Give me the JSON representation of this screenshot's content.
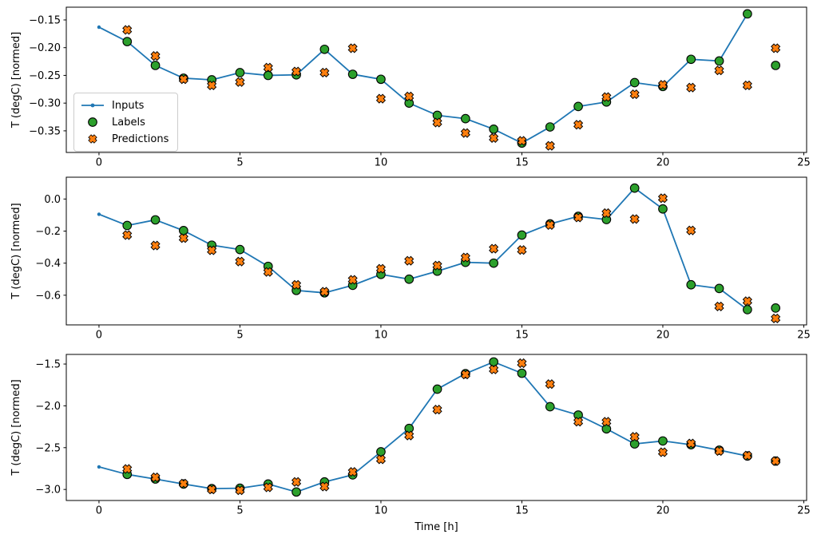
{
  "figure": {
    "background": "#ffffff"
  },
  "xlabel": "Time [h]",
  "legend": {
    "items": [
      {
        "label": "Inputs",
        "marker": "line-dot",
        "color": "#1f77b4"
      },
      {
        "label": "Labels",
        "marker": "circle",
        "color": "#2ca02c"
      },
      {
        "label": "Predictions",
        "marker": "x",
        "color": "#ff7f0e"
      }
    ]
  },
  "colors": {
    "inputs": "#1f77b4",
    "labels": "#2ca02c",
    "predictions": "#ff7f0e",
    "edge": "#000000"
  },
  "chart_data": [
    {
      "type": "line",
      "title": "",
      "ylabel": "T (degC) [normed]",
      "xlabel": "",
      "xlim": [
        -1.16,
        25.1
      ],
      "ylim": [
        -0.389,
        -0.127
      ],
      "grid": false,
      "xticks": [
        {
          "v": 0,
          "label": "0"
        },
        {
          "v": 5,
          "label": "5"
        },
        {
          "v": 10,
          "label": "10"
        },
        {
          "v": 15,
          "label": "15"
        },
        {
          "v": 20,
          "label": "20"
        },
        {
          "v": 25,
          "label": "25"
        }
      ],
      "yticks": [
        {
          "v": -0.15,
          "label": "−0.15"
        },
        {
          "v": -0.2,
          "label": "−0.20"
        },
        {
          "v": -0.25,
          "label": "−0.25"
        },
        {
          "v": -0.3,
          "label": "−0.30"
        },
        {
          "v": -0.35,
          "label": "−0.35"
        }
      ],
      "series": [
        {
          "name": "Inputs",
          "style": "line-dot",
          "color": "#1f77b4",
          "x": [
            0,
            1,
            2,
            3,
            4,
            5,
            6,
            7,
            8,
            9,
            10,
            11,
            12,
            13,
            14,
            15,
            16,
            17,
            18,
            19,
            20,
            21,
            22,
            23
          ],
          "y": [
            -0.163,
            -0.189,
            -0.232,
            -0.255,
            -0.258,
            -0.245,
            -0.25,
            -0.249,
            -0.203,
            -0.248,
            -0.257,
            -0.3,
            -0.322,
            -0.328,
            -0.347,
            -0.372,
            -0.343,
            -0.306,
            -0.298,
            -0.263,
            -0.27,
            -0.221,
            -0.224,
            -0.139
          ]
        },
        {
          "name": "Labels",
          "style": "circle",
          "color": "#2ca02c",
          "x": [
            1,
            2,
            3,
            4,
            5,
            6,
            7,
            8,
            9,
            10,
            11,
            12,
            13,
            14,
            15,
            16,
            17,
            18,
            19,
            20,
            21,
            22,
            23,
            24
          ],
          "y": [
            -0.189,
            -0.232,
            -0.255,
            -0.258,
            -0.245,
            -0.25,
            -0.249,
            -0.203,
            -0.248,
            -0.257,
            -0.3,
            -0.322,
            -0.328,
            -0.347,
            -0.372,
            -0.343,
            -0.306,
            -0.298,
            -0.263,
            -0.27,
            -0.221,
            -0.224,
            -0.139,
            -0.232
          ]
        },
        {
          "name": "Predictions",
          "style": "x",
          "color": "#ff7f0e",
          "x": [
            1,
            2,
            3,
            4,
            5,
            6,
            7,
            8,
            9,
            10,
            11,
            12,
            13,
            14,
            15,
            16,
            17,
            18,
            19,
            20,
            21,
            22,
            23,
            24
          ],
          "y": [
            -0.168,
            -0.215,
            -0.257,
            -0.268,
            -0.262,
            -0.236,
            -0.243,
            -0.245,
            -0.201,
            -0.292,
            -0.288,
            -0.335,
            -0.354,
            -0.363,
            -0.368,
            -0.377,
            -0.339,
            -0.289,
            -0.284,
            -0.267,
            -0.272,
            -0.241,
            -0.268,
            -0.201
          ]
        }
      ]
    },
    {
      "type": "line",
      "title": "",
      "ylabel": "T (degC) [normed]",
      "xlabel": "",
      "xlim": [
        -1.16,
        25.1
      ],
      "ylim": [
        -0.785,
        0.136
      ],
      "grid": false,
      "xticks": [
        {
          "v": 0,
          "label": "0"
        },
        {
          "v": 5,
          "label": "5"
        },
        {
          "v": 10,
          "label": "10"
        },
        {
          "v": 15,
          "label": "15"
        },
        {
          "v": 20,
          "label": "20"
        },
        {
          "v": 25,
          "label": "25"
        }
      ],
      "yticks": [
        {
          "v": 0.0,
          "label": "0.0"
        },
        {
          "v": -0.2,
          "label": "−0.2"
        },
        {
          "v": -0.4,
          "label": "−0.4"
        },
        {
          "v": -0.6,
          "label": "−0.6"
        }
      ],
      "series": [
        {
          "name": "Inputs",
          "style": "line-dot",
          "color": "#1f77b4",
          "x": [
            0,
            1,
            2,
            3,
            4,
            5,
            6,
            7,
            8,
            9,
            10,
            11,
            12,
            13,
            14,
            15,
            16,
            17,
            18,
            19,
            20,
            21,
            22,
            23
          ],
          "y": [
            -0.095,
            -0.165,
            -0.13,
            -0.197,
            -0.288,
            -0.315,
            -0.42,
            -0.57,
            -0.585,
            -0.538,
            -0.47,
            -0.5,
            -0.45,
            -0.395,
            -0.4,
            -0.225,
            -0.155,
            -0.108,
            -0.128,
            0.068,
            -0.062,
            -0.535,
            -0.558,
            -0.69
          ]
        },
        {
          "name": "Labels",
          "style": "circle",
          "color": "#2ca02c",
          "x": [
            1,
            2,
            3,
            4,
            5,
            6,
            7,
            8,
            9,
            10,
            11,
            12,
            13,
            14,
            15,
            16,
            17,
            18,
            19,
            20,
            21,
            22,
            23,
            24
          ],
          "y": [
            -0.165,
            -0.13,
            -0.197,
            -0.288,
            -0.315,
            -0.42,
            -0.57,
            -0.585,
            -0.538,
            -0.47,
            -0.5,
            -0.45,
            -0.395,
            -0.4,
            -0.225,
            -0.155,
            -0.108,
            -0.128,
            0.068,
            -0.062,
            -0.535,
            -0.558,
            -0.69,
            -0.68
          ]
        },
        {
          "name": "Predictions",
          "style": "x",
          "color": "#ff7f0e",
          "x": [
            1,
            2,
            3,
            4,
            5,
            6,
            7,
            8,
            9,
            10,
            11,
            12,
            13,
            14,
            15,
            16,
            17,
            18,
            19,
            20,
            21,
            22,
            23,
            24
          ],
          "y": [
            -0.225,
            -0.29,
            -0.244,
            -0.32,
            -0.39,
            -0.455,
            -0.535,
            -0.578,
            -0.504,
            -0.435,
            -0.385,
            -0.415,
            -0.365,
            -0.31,
            -0.318,
            -0.162,
            -0.115,
            -0.088,
            -0.125,
            0.005,
            -0.196,
            -0.67,
            -0.637,
            -0.745
          ]
        }
      ]
    },
    {
      "type": "line",
      "title": "",
      "ylabel": "T (degC) [normed]",
      "xlabel": "Time [h]",
      "xlim": [
        -1.16,
        25.1
      ],
      "ylim": [
        -3.132,
        -1.385
      ],
      "grid": false,
      "xticks": [
        {
          "v": 0,
          "label": "0"
        },
        {
          "v": 5,
          "label": "5"
        },
        {
          "v": 10,
          "label": "10"
        },
        {
          "v": 15,
          "label": "15"
        },
        {
          "v": 20,
          "label": "20"
        },
        {
          "v": 25,
          "label": "25"
        }
      ],
      "yticks": [
        {
          "v": -1.5,
          "label": "−1.5"
        },
        {
          "v": -2.0,
          "label": "−2.0"
        },
        {
          "v": -2.5,
          "label": "−2.5"
        },
        {
          "v": -3.0,
          "label": "−3.0"
        }
      ],
      "series": [
        {
          "name": "Inputs",
          "style": "line-dot",
          "color": "#1f77b4",
          "x": [
            0,
            1,
            2,
            3,
            4,
            5,
            6,
            7,
            8,
            9,
            10,
            11,
            12,
            13,
            14,
            15,
            16,
            17,
            18,
            19,
            20,
            21,
            22,
            23
          ],
          "y": [
            -2.73,
            -2.82,
            -2.875,
            -2.935,
            -2.99,
            -2.985,
            -2.935,
            -3.03,
            -2.91,
            -2.825,
            -2.55,
            -2.27,
            -1.8,
            -1.615,
            -1.475,
            -1.61,
            -2.01,
            -2.11,
            -2.275,
            -2.455,
            -2.42,
            -2.465,
            -2.53,
            -2.6
          ]
        },
        {
          "name": "Labels",
          "style": "circle",
          "color": "#2ca02c",
          "x": [
            1,
            2,
            3,
            4,
            5,
            6,
            7,
            8,
            9,
            10,
            11,
            12,
            13,
            14,
            15,
            16,
            17,
            18,
            19,
            20,
            21,
            22,
            23,
            24
          ],
          "y": [
            -2.82,
            -2.875,
            -2.935,
            -2.99,
            -2.985,
            -2.935,
            -3.03,
            -2.91,
            -2.825,
            -2.55,
            -2.27,
            -1.8,
            -1.615,
            -1.475,
            -1.61,
            -2.01,
            -2.11,
            -2.275,
            -2.455,
            -2.42,
            -2.465,
            -2.53,
            -2.6,
            -2.66
          ]
        },
        {
          "name": "Predictions",
          "style": "x",
          "color": "#ff7f0e",
          "x": [
            1,
            2,
            3,
            4,
            5,
            6,
            7,
            8,
            9,
            10,
            11,
            12,
            13,
            14,
            15,
            16,
            17,
            18,
            19,
            20,
            21,
            22,
            23,
            24
          ],
          "y": [
            -2.755,
            -2.855,
            -2.93,
            -3.0,
            -3.01,
            -2.975,
            -2.91,
            -2.965,
            -2.79,
            -2.64,
            -2.355,
            -2.045,
            -1.625,
            -1.565,
            -1.49,
            -1.74,
            -2.19,
            -2.19,
            -2.37,
            -2.555,
            -2.45,
            -2.54,
            -2.595,
            -2.66
          ]
        }
      ]
    }
  ]
}
